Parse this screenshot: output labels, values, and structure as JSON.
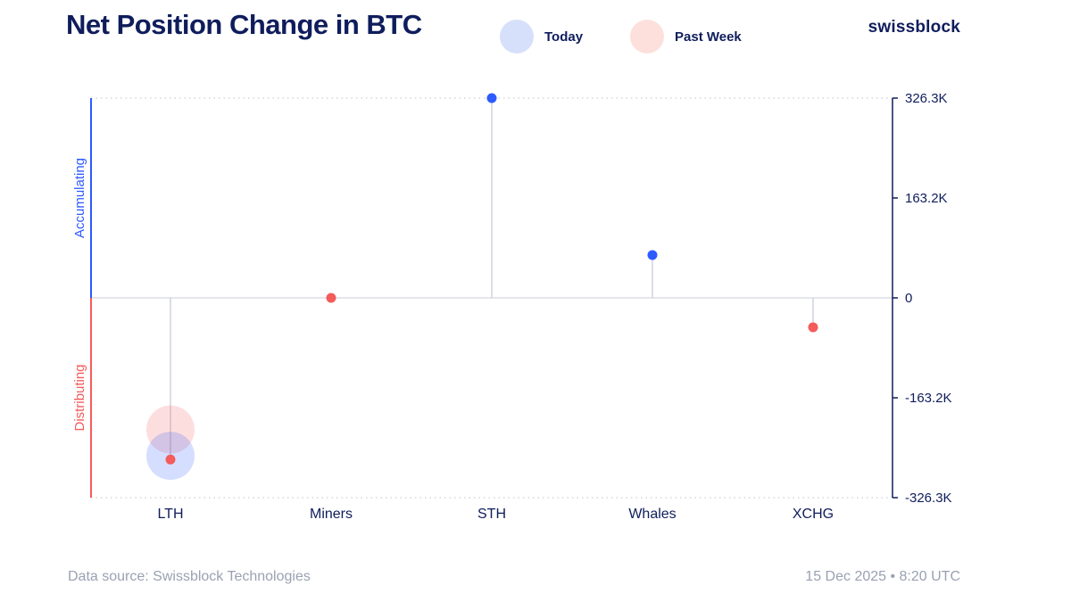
{
  "header": {
    "title": "Net Position Change in BTC",
    "brand": "swissblock"
  },
  "legend": {
    "today": {
      "label": "Today",
      "color": "#2d5bff"
    },
    "past_week": {
      "label": "Past Week",
      "color": "#f45b5b"
    }
  },
  "side_labels": {
    "positive": "Accumulating",
    "negative": "Distributing"
  },
  "footer": {
    "source": "Data source: Swissblock Technologies",
    "timestamp": "15 Dec 2025 • 8:20 UTC"
  },
  "chart_data": {
    "type": "scatter",
    "title": "Net Position Change in BTC",
    "categories": [
      "LTH",
      "Miners",
      "STH",
      "Whales",
      "XCHG"
    ],
    "ylim": [
      -326300,
      326300
    ],
    "yticks": [
      326300,
      163200,
      0,
      -163200,
      -326300
    ],
    "ytick_labels": [
      "326.3K",
      "163.2K",
      "0",
      "-163.2K",
      "-326.3K"
    ],
    "y_axis_position": "right",
    "grid": "dotted top/bottom, zero line solid",
    "points": [
      {
        "category": "LTH",
        "value": -264000,
        "color": "#f45b5b"
      },
      {
        "category": "Miners",
        "value": 0,
        "color": "#f45b5b"
      },
      {
        "category": "STH",
        "value": 326300,
        "color": "#2d5bff"
      },
      {
        "category": "Whales",
        "value": 70000,
        "color": "#2d5bff"
      },
      {
        "category": "XCHG",
        "value": -48000,
        "color": "#f45b5b"
      }
    ],
    "bubbles": [
      {
        "series": "Past Week",
        "category": "LTH",
        "value": -215000,
        "color": "#f45b5b"
      },
      {
        "series": "Today",
        "category": "LTH",
        "value": -258000,
        "color": "#2d5bff"
      }
    ],
    "colors": {
      "positive": "#2d5bff",
      "negative": "#f45b5b",
      "axis": "#0f1d5c",
      "stem": "#c9cdd8"
    }
  }
}
